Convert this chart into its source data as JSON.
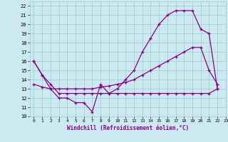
{
  "bg_color": "#cce8f0",
  "grid_color": "#99cccc",
  "line_color": "#880088",
  "xlabel": "Windchill (Refroidissement éolien,°C)",
  "xlim": [
    -0.5,
    23
  ],
  "ylim": [
    10,
    22.5
  ],
  "xticks": [
    0,
    1,
    2,
    3,
    4,
    5,
    6,
    7,
    8,
    9,
    10,
    11,
    12,
    13,
    14,
    15,
    16,
    17,
    18,
    19,
    20,
    21,
    22,
    23
  ],
  "yticks": [
    10,
    11,
    12,
    13,
    14,
    15,
    16,
    17,
    18,
    19,
    20,
    21,
    22
  ],
  "series1_x": [
    0,
    1,
    2,
    3,
    4,
    5,
    6,
    7,
    8,
    9,
    10,
    11,
    12,
    13,
    14,
    15,
    16,
    17,
    18,
    19,
    20,
    21,
    22
  ],
  "series1_y": [
    16,
    14.5,
    13,
    12,
    12,
    11.5,
    11.5,
    10.5,
    13.5,
    12.5,
    12.5,
    12.5,
    12.5,
    12.5,
    12.5,
    12.5,
    12.5,
    12.5,
    12.5,
    12.5,
    12.5,
    12.5,
    13
  ],
  "series2_x": [
    0,
    1,
    2,
    3,
    4,
    5,
    6,
    7,
    8,
    9,
    10,
    11,
    12,
    13,
    14,
    15,
    16,
    17,
    18,
    19,
    20,
    21,
    22
  ],
  "series2_y": [
    13.5,
    13.2,
    13,
    13,
    13,
    13,
    13,
    13,
    13.2,
    13.3,
    13.5,
    13.7,
    14.0,
    14.5,
    15.0,
    15.5,
    16.0,
    16.5,
    17.0,
    17.5,
    17.5,
    15.0,
    13.5
  ],
  "series3_x": [
    0,
    1,
    2,
    3,
    4,
    5,
    6,
    7,
    8,
    9,
    10,
    11,
    12,
    13,
    14,
    15,
    16,
    17,
    18,
    19,
    20,
    21,
    22
  ],
  "series3_y": [
    16,
    14.5,
    13.5,
    12.5,
    12.5,
    12.5,
    12.5,
    12.5,
    12.5,
    12.5,
    13.0,
    14.0,
    15.0,
    17.0,
    18.5,
    20.0,
    21.0,
    21.5,
    21.5,
    21.5,
    19.5,
    19.0,
    13.0
  ]
}
